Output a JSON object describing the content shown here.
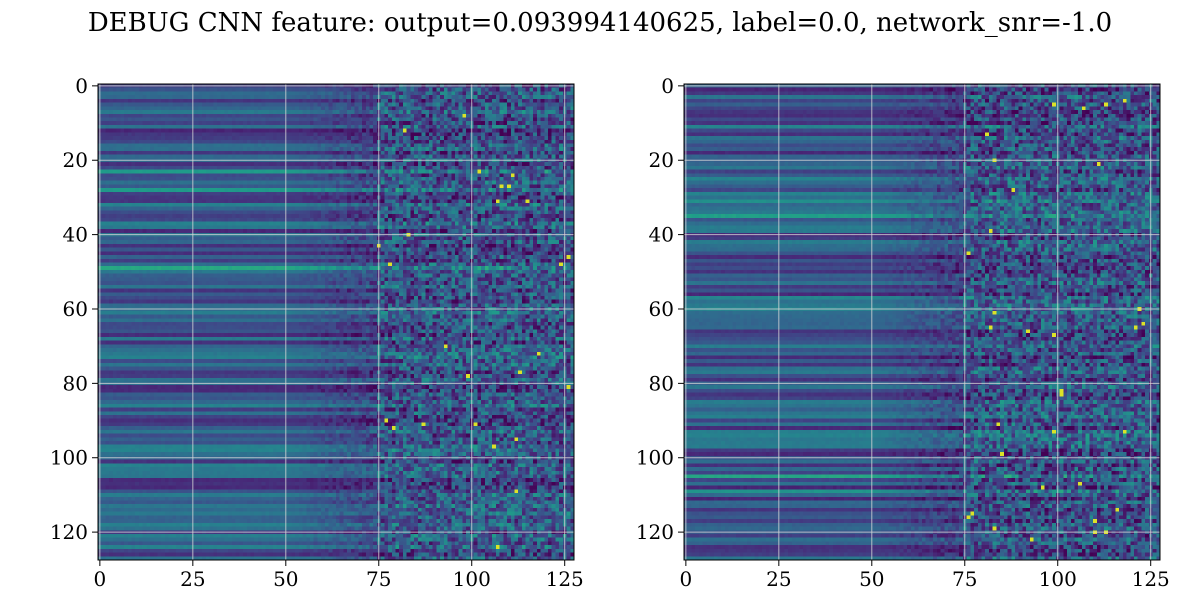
{
  "title": "DEBUG CNN feature: output=0.093994140625, label=0.0, network_snr=-1.0",
  "chart_data": [
    {
      "type": "heatmap",
      "colormap": "viridis",
      "shape": [
        128,
        128
      ],
      "xlim": [
        -0.5,
        127.5
      ],
      "ylim": [
        127.5,
        -0.5
      ],
      "xticks": [
        0,
        25,
        50,
        75,
        100,
        125
      ],
      "yticks": [
        0,
        20,
        40,
        60,
        80,
        100,
        120
      ],
      "grid": true
    },
    {
      "type": "heatmap",
      "colormap": "viridis",
      "shape": [
        128,
        128
      ],
      "xlim": [
        -0.5,
        127.5
      ],
      "ylim": [
        127.5,
        -0.5
      ],
      "xticks": [
        0,
        25,
        50,
        75,
        100,
        125
      ],
      "yticks": [
        0,
        20,
        40,
        60,
        80,
        100,
        120
      ],
      "grid": true
    }
  ]
}
